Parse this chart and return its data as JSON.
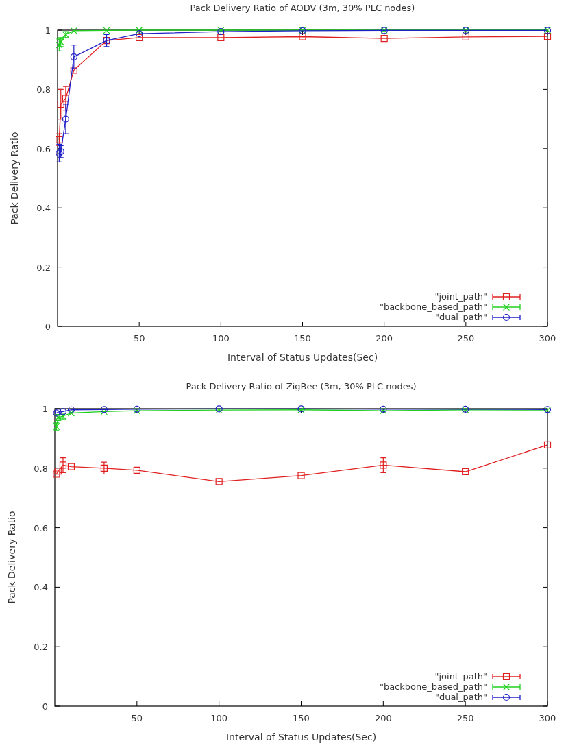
{
  "chart_data": [
    {
      "type": "line",
      "title": "Pack Delivery Ratio of AODV (3m, 30% PLC nodes)",
      "xlabel": "Interval of Status Updates(Sec)",
      "ylabel": "Pack Delivery Ratio",
      "x": [
        1,
        2,
        5,
        10,
        30,
        50,
        100,
        150,
        200,
        250,
        300
      ],
      "xlim": [
        0,
        300
      ],
      "xticks": [
        50,
        100,
        150,
        200,
        250,
        300
      ],
      "ylim": [
        0,
        1
      ],
      "yticks": [
        0,
        0.2,
        0.4,
        0.6,
        0.8,
        1
      ],
      "grid": false,
      "legend": "bottom right",
      "series": [
        {
          "name": "\"joint_path\"",
          "color": "#e02020",
          "marker": "square",
          "values": [
            0.63,
            0.75,
            0.77,
            0.865,
            0.965,
            0.975,
            0.975,
            0.978,
            0.972,
            0.977,
            0.979
          ],
          "errors": [
            0.02,
            0.05,
            0.04,
            null,
            0.01,
            null,
            null,
            null,
            null,
            null,
            null
          ]
        },
        {
          "name": "\"backbone_based_path\"",
          "color": "#20d020",
          "marker": "cross",
          "values": [
            0.95,
            0.96,
            0.985,
            0.998,
            0.999,
            1,
            1,
            1,
            1,
            1,
            1
          ],
          "errors": [
            0.02,
            0.015,
            0.01,
            null,
            null,
            null,
            null,
            null,
            null,
            null,
            null
          ]
        },
        {
          "name": "\"dual_path\"",
          "color": "#2020c8",
          "marker": "circle",
          "values": [
            0.585,
            0.59,
            0.7,
            0.91,
            0.965,
            0.988,
            0.995,
            0.998,
            0.999,
            0.999,
            0.999
          ],
          "errors": [
            0.03,
            0.02,
            0.05,
            0.04,
            0.02,
            null,
            null,
            null,
            null,
            null,
            null
          ]
        }
      ]
    },
    {
      "type": "line",
      "title": "Pack Delivery Ratio of ZigBee (3m, 30% PLC nodes)",
      "xlabel": "Interval of Status Updates(Sec)",
      "ylabel": "Pack Delivery Ratio",
      "x": [
        1,
        2,
        5,
        10,
        30,
        50,
        100,
        150,
        200,
        250,
        300
      ],
      "xlim": [
        0,
        300
      ],
      "xticks": [
        50,
        100,
        150,
        200,
        250,
        300
      ],
      "ylim": [
        0,
        1
      ],
      "yticks": [
        0,
        0.2,
        0.4,
        0.6,
        0.8,
        1
      ],
      "grid": false,
      "legend": "bottom right",
      "series": [
        {
          "name": "\"joint_path\"",
          "color": "#e02020",
          "marker": "square",
          "values": [
            0.78,
            0.79,
            0.81,
            0.805,
            0.8,
            0.793,
            0.755,
            0.775,
            0.81,
            0.788,
            0.878
          ],
          "errors": [
            null,
            null,
            0.025,
            null,
            0.02,
            null,
            null,
            null,
            0.025,
            null,
            null
          ]
        },
        {
          "name": "\"backbone_based_path\"",
          "color": "#20d020",
          "marker": "cross",
          "values": [
            0.94,
            0.97,
            0.975,
            0.985,
            0.99,
            0.993,
            0.995,
            0.996,
            0.993,
            0.996,
            0.995
          ],
          "errors": [
            0.012,
            0.01,
            0.01,
            null,
            null,
            null,
            null,
            null,
            null,
            null,
            null
          ]
        },
        {
          "name": "\"dual_path\"",
          "color": "#2020c8",
          "marker": "circle",
          "values": [
            0.985,
            0.988,
            0.99,
            0.996,
            0.997,
            0.998,
            0.999,
            0.999,
            0.998,
            0.998,
            0.997
          ],
          "errors": [
            null,
            null,
            null,
            null,
            null,
            null,
            null,
            null,
            null,
            null,
            null
          ]
        }
      ]
    }
  ]
}
